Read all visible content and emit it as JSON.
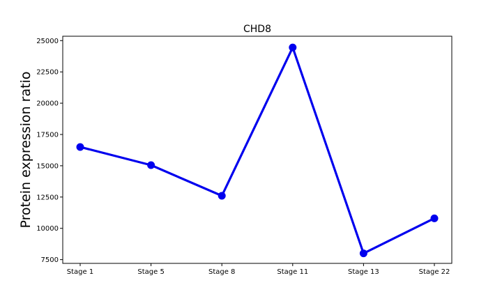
{
  "chart_data": {
    "type": "line",
    "title": "CHD8",
    "xlabel": "",
    "ylabel": "Protein expression ratio",
    "categories": [
      "Stage 1",
      "Stage 5",
      "Stage 8",
      "Stage 11",
      "Stage 13",
      "Stage 22"
    ],
    "series": [
      {
        "values": [
          16500,
          15050,
          12600,
          24450,
          8000,
          10800
        ],
        "color": "#0000ee"
      }
    ],
    "yticks": [
      7500,
      10000,
      12500,
      15000,
      17500,
      20000,
      22500,
      25000
    ],
    "ylim": [
      7200,
      25350
    ],
    "grid": false,
    "legend": "none"
  }
}
